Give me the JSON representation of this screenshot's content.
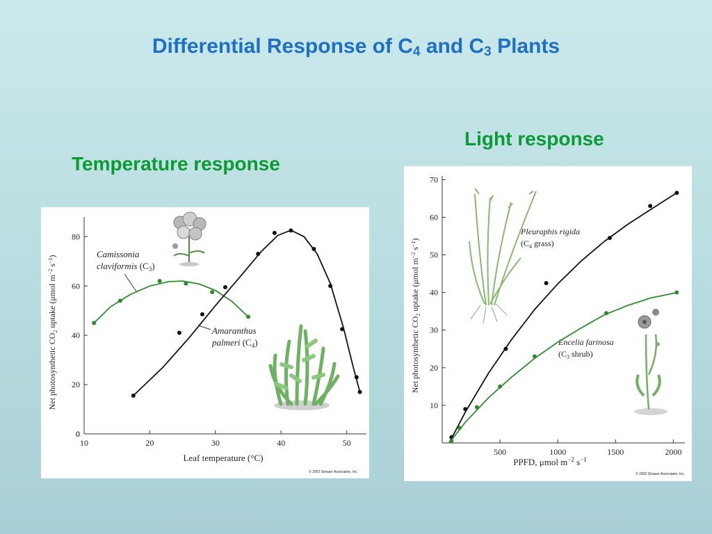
{
  "slide": {
    "title_main": "Differential Response of C",
    "title_sub1": "4",
    "title_mid": " and C",
    "title_sub2": "3",
    "title_end": " Plants",
    "temp_heading": "Temperature response",
    "light_heading": "Light response"
  },
  "colors": {
    "title": "#1f6fc2",
    "heading": "#0b9a34",
    "c3": "#2e8b2e",
    "c4": "#111111"
  },
  "temp_chart": {
    "ylabel_pre": "Net photosynthetic CO",
    "ylabel_sub": "2",
    "ylabel_mid": " uptake (μmol m",
    "ylabel_sup1": "−2",
    "ylabel_mid2": " s",
    "ylabel_sup2": "−1",
    "ylabel_end": ")",
    "xlabel": "Leaf temperature (°C)",
    "c3_name1": "Camissonia",
    "c3_name2": "claviformis",
    "c3_tag": " (C",
    "c3_tag_sub": "3",
    "c4_name1": "Amaranthus",
    "c4_name2": "palmeri",
    "c4_tag": " (C",
    "c4_tag_sub": "4",
    "copyright": "© 2002 Sinauer Associates, Inc."
  },
  "light_chart": {
    "ylabel_pre": "Net photosynthetic CO",
    "ylabel_sub": "2",
    "ylabel_mid": " uptake (μmol m",
    "ylabel_sup1": "−2",
    "ylabel_mid2": " s",
    "ylabel_sup2": "−1",
    "ylabel_end": ")",
    "xlabel_pre": "PPFD, μmol m",
    "xlabel_sup1": "−2",
    "xlabel_mid": " s",
    "xlabel_sup2": "−1",
    "c4_name": "Pleuraphis rigida",
    "c4_tag": "(C",
    "c4_tag_sub": "4",
    "c4_tag_end": " grass)",
    "c3_name": "Encelia farinosa",
    "c3_tag": "(C",
    "c3_tag_sub": "3",
    "c3_tag_end": " shrub)",
    "copyright": "© 2002 Sinauer Associates, Inc."
  },
  "chart_data": [
    {
      "type": "scatter",
      "xlim": [
        10,
        53
      ],
      "ylim": [
        0,
        88
      ],
      "xticks": [
        10,
        20,
        30,
        40,
        50
      ],
      "yticks": [
        0,
        20,
        40,
        60,
        80
      ],
      "series": [
        {
          "name": "Camissonia claviformis (C3)",
          "color": "#2e8b2e",
          "points": [
            [
              11.5,
              45
            ],
            [
              15.5,
              54
            ],
            [
              21.5,
              62
            ],
            [
              25.5,
              61
            ],
            [
              29.5,
              57.5
            ],
            [
              35,
              47.5
            ]
          ],
          "curve": [
            [
              11.5,
              45
            ],
            [
              14,
              51.5
            ],
            [
              17,
              56.5
            ],
            [
              20,
              60
            ],
            [
              23,
              61.8
            ],
            [
              25,
              62
            ],
            [
              27.5,
              60.8
            ],
            [
              30,
              58.2
            ],
            [
              32.5,
              53.8
            ],
            [
              35,
              47.5
            ]
          ]
        },
        {
          "name": "Amaranthus palmeri (C4)",
          "color": "#111111",
          "points": [
            [
              17.5,
              15.5
            ],
            [
              24.5,
              41
            ],
            [
              28,
              48.5
            ],
            [
              31.5,
              59.5
            ],
            [
              36.5,
              73
            ],
            [
              39,
              81.5
            ],
            [
              41.5,
              82.5
            ],
            [
              45,
              75
            ],
            [
              47.5,
              60
            ],
            [
              49.3,
              42.5
            ],
            [
              51.5,
              23
            ],
            [
              52,
              17
            ]
          ],
          "curve": [
            [
              17.5,
              15.5
            ],
            [
              22,
              27
            ],
            [
              26,
              39
            ],
            [
              30,
              52
            ],
            [
              34,
              64.5
            ],
            [
              37,
              74
            ],
            [
              39.5,
              80.5
            ],
            [
              41.5,
              82.6
            ],
            [
              43.5,
              80
            ],
            [
              45.5,
              73
            ],
            [
              47.5,
              61
            ],
            [
              49.5,
              43
            ],
            [
              51,
              27
            ],
            [
              52,
              17
            ]
          ]
        }
      ]
    },
    {
      "type": "scatter",
      "xlim": [
        0,
        2100
      ],
      "ylim": [
        0,
        71
      ],
      "xticks": [
        500,
        1000,
        1500,
        2000
      ],
      "yticks": [
        10,
        20,
        30,
        40,
        50,
        60,
        70
      ],
      "series": [
        {
          "name": "Pleuraphis rigida (C4 grass)",
          "color": "#111111",
          "points": [
            [
              80,
              1.5
            ],
            [
              200,
              9
            ],
            [
              550,
              25
            ],
            [
              900,
              42.5
            ],
            [
              1450,
              54.5
            ],
            [
              1800,
              63
            ],
            [
              2030,
              66.5
            ]
          ],
          "curve": [
            [
              60,
              0
            ],
            [
              200,
              8.2
            ],
            [
              400,
              18.5
            ],
            [
              600,
              27.5
            ],
            [
              800,
              35.5
            ],
            [
              1000,
              42.3
            ],
            [
              1200,
              48.3
            ],
            [
              1400,
              53.5
            ],
            [
              1600,
              58
            ],
            [
              1800,
              62
            ],
            [
              2030,
              66.5
            ]
          ]
        },
        {
          "name": "Encelia farinosa (C3 shrub)",
          "color": "#2e8b2e",
          "points": [
            [
              80,
              0.5
            ],
            [
              150,
              4
            ],
            [
              300,
              9.5
            ],
            [
              500,
              15
            ],
            [
              800,
              23
            ],
            [
              1420,
              34.5
            ],
            [
              2030,
              40
            ]
          ],
          "curve": [
            [
              60,
              0
            ],
            [
              200,
              5.5
            ],
            [
              400,
              12
            ],
            [
              600,
              17.5
            ],
            [
              800,
              22.5
            ],
            [
              1000,
              26.8
            ],
            [
              1200,
              30.5
            ],
            [
              1400,
              34
            ],
            [
              1600,
              36.5
            ],
            [
              1800,
              38.5
            ],
            [
              2030,
              40
            ]
          ]
        }
      ]
    }
  ]
}
